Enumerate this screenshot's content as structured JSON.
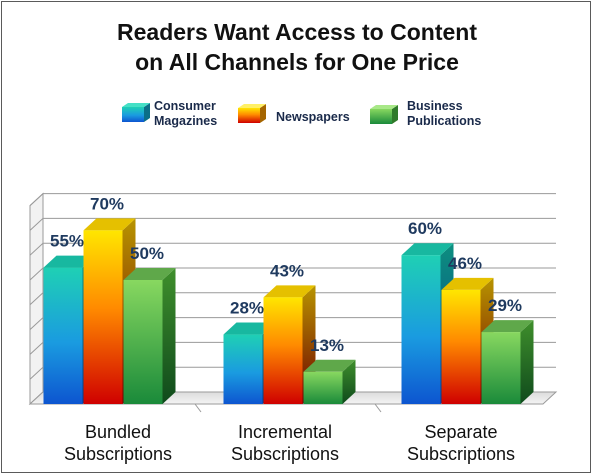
{
  "chart_data": {
    "type": "bar",
    "title_lines": [
      "Readers Want Access to Content",
      "on All Channels for One Price"
    ],
    "categories": [
      [
        "Bundled",
        "Subscriptions"
      ],
      [
        "Incremental",
        "Subscriptions"
      ],
      [
        "Separate",
        "Subscriptions"
      ]
    ],
    "series": [
      {
        "name": [
          "Consumer",
          "Magazines"
        ],
        "values": [
          55,
          28,
          60
        ],
        "labels": [
          "55%",
          "28%",
          "60%"
        ]
      },
      {
        "name": [
          "Newspapers"
        ],
        "values": [
          70,
          43,
          46
        ],
        "labels": [
          "70%",
          "43%",
          "46%"
        ]
      },
      {
        "name": [
          "Business",
          "Publications"
        ],
        "values": [
          50,
          13,
          29
        ],
        "labels": [
          "50%",
          "13%",
          "29%"
        ]
      }
    ],
    "ylim": [
      0,
      80
    ],
    "grid": true,
    "legend_position": "top",
    "colors": {
      "consumer_top": "#19c9b0",
      "consumer_bottom": "#1060d8",
      "consumer_side": "#0b7f74",
      "news_top": "#ffe000",
      "news_bottom": "#c80000",
      "news_side": "#a87800",
      "biz_top": "#7ed35a",
      "biz_bottom": "#1e8e3c",
      "biz_side": "#17602a",
      "label_color": "#1f3a5f"
    }
  }
}
